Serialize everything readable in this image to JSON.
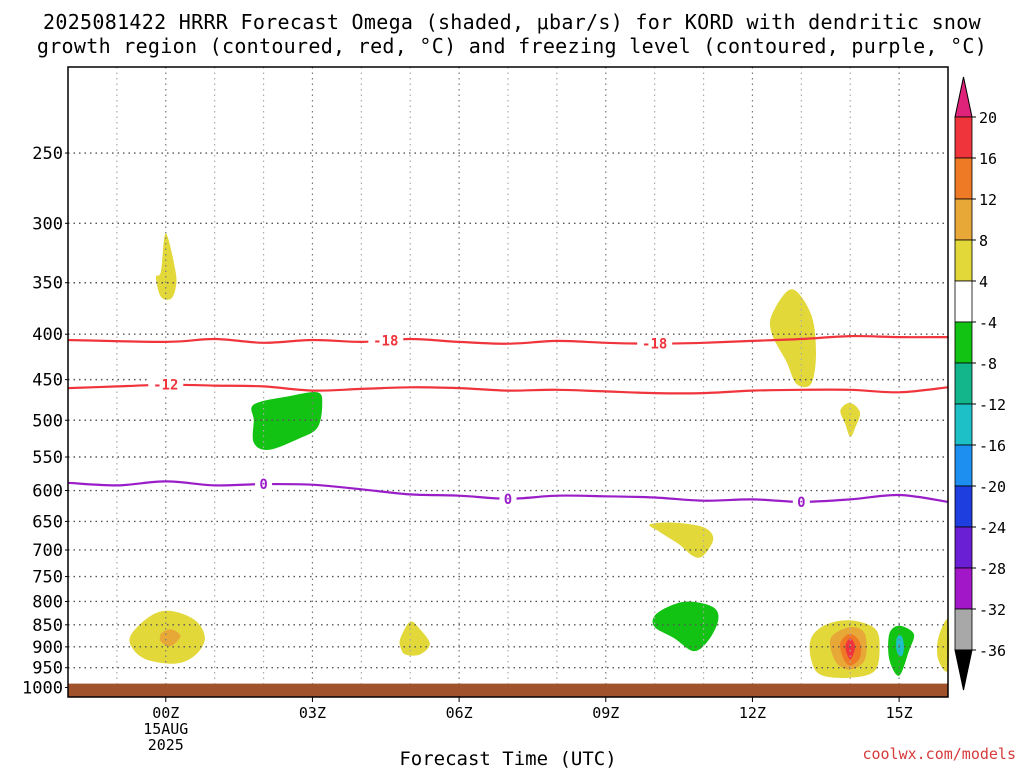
{
  "title": {
    "line1": "2025081422 HRRR Forecast Omega (shaded, μbar/s) for KORD with dendritic snow",
    "line2": "growth region (contoured, red, °C) and freezing level (contoured, purple, °C)"
  },
  "credit": "coolwx.com/models",
  "chart_data": {
    "type": "contour-cross-section",
    "xlabel": "Forecast Time (UTC)",
    "ylabel": "",
    "x_ticks": [
      {
        "value": 0,
        "label": "00Z",
        "sub": [
          "15AUG",
          "2025"
        ]
      },
      {
        "value": 3,
        "label": "03Z",
        "sub": []
      },
      {
        "value": 6,
        "label": "06Z",
        "sub": []
      },
      {
        "value": 9,
        "label": "09Z",
        "sub": []
      },
      {
        "value": 12,
        "label": "12Z",
        "sub": []
      },
      {
        "value": 15,
        "label": "15Z",
        "sub": []
      }
    ],
    "xlim": [
      -2,
      16
    ],
    "y_ticks": [
      250,
      300,
      350,
      400,
      450,
      500,
      550,
      600,
      650,
      700,
      750,
      800,
      850,
      900,
      950,
      1000
    ],
    "ylim_hPa": [
      200,
      1025
    ],
    "y_scale": "log",
    "grid": true,
    "colorbar": {
      "labels": [
        "20",
        "16",
        "12",
        "8",
        "4",
        "-4",
        "-8",
        "-12",
        "-16",
        "-20",
        "-24",
        "-28",
        "-32",
        "-36"
      ],
      "colors": [
        "#e0235b",
        "#f0343c",
        "#ee7a26",
        "#e8a838",
        "#e2d83a",
        "#ffffff",
        "#13c313",
        "#13b58a",
        "#1ec0c8",
        "#1d8ff0",
        "#1e3ee0",
        "#6a1fd4",
        "#a217c8",
        "#a8a8a8"
      ],
      "top_arrow_color": "#e0237a",
      "bottom_arrow_color": "#000000"
    },
    "contours": [
      {
        "name": "-18",
        "color": "#f0343c",
        "label_at": [
          4.5,
          10
        ],
        "points": [
          [
            -2,
            406
          ],
          [
            0,
            408
          ],
          [
            1,
            405
          ],
          [
            2,
            409
          ],
          [
            3,
            406
          ],
          [
            4,
            408
          ],
          [
            5,
            405
          ],
          [
            6,
            408
          ],
          [
            7,
            410
          ],
          [
            8,
            407
          ],
          [
            9,
            409
          ],
          [
            10,
            410
          ],
          [
            11,
            409
          ],
          [
            12,
            407
          ],
          [
            13,
            405
          ],
          [
            14,
            402
          ],
          [
            15,
            403
          ],
          [
            16,
            403
          ]
        ]
      },
      {
        "name": "-12",
        "color": "#f0343c",
        "label_at": [
          0
        ],
        "points": [
          [
            -2,
            460
          ],
          [
            -1,
            458
          ],
          [
            0,
            456
          ],
          [
            1,
            457
          ],
          [
            2,
            458
          ],
          [
            3,
            463
          ],
          [
            4,
            461
          ],
          [
            5,
            459
          ],
          [
            6,
            460
          ],
          [
            7,
            463
          ],
          [
            8,
            462
          ],
          [
            9,
            464
          ],
          [
            10,
            466
          ],
          [
            11,
            466
          ],
          [
            12,
            463
          ],
          [
            13,
            462
          ],
          [
            14,
            462
          ],
          [
            15,
            465
          ],
          [
            16,
            459
          ]
        ]
      },
      {
        "name": "0",
        "color": "#9a1ec8",
        "label_at": [
          2,
          7,
          13
        ],
        "points": [
          [
            -2,
            588
          ],
          [
            -1,
            592
          ],
          [
            0,
            586
          ],
          [
            1,
            592
          ],
          [
            2,
            590
          ],
          [
            3,
            591
          ],
          [
            4,
            598
          ],
          [
            5,
            606
          ],
          [
            6,
            608
          ],
          [
            7,
            613
          ],
          [
            8,
            608
          ],
          [
            9,
            609
          ],
          [
            10,
            611
          ],
          [
            11,
            616
          ],
          [
            12,
            614
          ],
          [
            13,
            618
          ],
          [
            14,
            614
          ],
          [
            15,
            607
          ],
          [
            16,
            618
          ]
        ]
      }
    ],
    "omega_patches": [
      {
        "level": 4,
        "color": "#e2d83a",
        "points": [
          [
            -0.1,
            340
          ],
          [
            0,
            308
          ],
          [
            0.2,
            340
          ],
          [
            0.2,
            355
          ],
          [
            0.1,
            365
          ],
          [
            -0.1,
            363
          ],
          [
            -0.2,
            345
          ]
        ]
      },
      {
        "level": -8,
        "color": "#13c313",
        "points": [
          [
            1.8,
            480
          ],
          [
            2.5,
            470
          ],
          [
            3.1,
            465
          ],
          [
            3.2,
            480
          ],
          [
            3.1,
            510
          ],
          [
            2.7,
            525
          ],
          [
            2.1,
            540
          ],
          [
            1.8,
            530
          ],
          [
            1.8,
            500
          ]
        ]
      },
      {
        "level": 4,
        "color": "#e2d83a",
        "points": [
          [
            12.4,
            380
          ],
          [
            12.8,
            356
          ],
          [
            13.2,
            380
          ],
          [
            13.3,
            420
          ],
          [
            13.2,
            455
          ],
          [
            12.9,
            455
          ],
          [
            12.7,
            430
          ],
          [
            12.4,
            400
          ]
        ]
      },
      {
        "level": 4,
        "color": "#e2d83a",
        "points": [
          [
            13.8,
            487
          ],
          [
            14.0,
            478
          ],
          [
            14.2,
            490
          ],
          [
            14.1,
            510
          ],
          [
            14.0,
            522
          ],
          [
            13.9,
            505
          ]
        ]
      },
      {
        "level": 4,
        "color": "#e2d83a",
        "points": [
          [
            9.9,
            655
          ],
          [
            10.4,
            652
          ],
          [
            11.0,
            660
          ],
          [
            11.2,
            680
          ],
          [
            11.0,
            710
          ],
          [
            10.8,
            712
          ],
          [
            10.5,
            690
          ],
          [
            10.1,
            668
          ]
        ]
      },
      {
        "level": -8,
        "color": "#13c313",
        "points": [
          [
            10.0,
            830
          ],
          [
            10.3,
            810
          ],
          [
            10.7,
            800
          ],
          [
            11.2,
            812
          ],
          [
            11.3,
            840
          ],
          [
            11.1,
            885
          ],
          [
            10.8,
            910
          ],
          [
            10.4,
            880
          ],
          [
            10.0,
            855
          ]
        ]
      },
      {
        "level": 4,
        "color": "#e2d83a",
        "points": [
          [
            -0.7,
            870
          ],
          [
            -0.3,
            830
          ],
          [
            0.1,
            820
          ],
          [
            0.6,
            840
          ],
          [
            0.8,
            880
          ],
          [
            0.6,
            920
          ],
          [
            0.2,
            940
          ],
          [
            -0.4,
            930
          ],
          [
            -0.7,
            900
          ]
        ]
      },
      {
        "level": 8,
        "color": "#e8a838",
        "points": [
          [
            -0.1,
            870
          ],
          [
            0.1,
            860
          ],
          [
            0.3,
            875
          ],
          [
            0.1,
            898
          ],
          [
            -0.1,
            888
          ]
        ]
      },
      {
        "level": 4,
        "color": "#e2d83a",
        "points": [
          [
            4.8,
            880
          ],
          [
            5.0,
            843
          ],
          [
            5.2,
            860
          ],
          [
            5.4,
            893
          ],
          [
            5.2,
            918
          ],
          [
            4.9,
            918
          ],
          [
            4.8,
            900
          ]
        ]
      },
      {
        "level": 4,
        "color": "#e2d83a",
        "points": [
          [
            13.2,
            880
          ],
          [
            13.5,
            850
          ],
          [
            14.0,
            840
          ],
          [
            14.5,
            858
          ],
          [
            14.6,
            900
          ],
          [
            14.5,
            958
          ],
          [
            14.0,
            975
          ],
          [
            13.4,
            968
          ],
          [
            13.2,
            930
          ]
        ]
      },
      {
        "level": 8,
        "color": "#e8a838",
        "points": [
          [
            13.6,
            880
          ],
          [
            14.0,
            855
          ],
          [
            14.3,
            870
          ],
          [
            14.3,
            930
          ],
          [
            14.0,
            955
          ],
          [
            13.7,
            935
          ]
        ]
      },
      {
        "level": 12,
        "color": "#ee7a26",
        "points": [
          [
            13.8,
            890
          ],
          [
            14.0,
            870
          ],
          [
            14.2,
            890
          ],
          [
            14.2,
            925
          ],
          [
            14.0,
            945
          ],
          [
            13.85,
            925
          ]
        ]
      },
      {
        "level": 16,
        "color": "#f0343c",
        "points": [
          [
            13.9,
            900
          ],
          [
            14.0,
            880
          ],
          [
            14.1,
            900
          ],
          [
            14.0,
            930
          ]
        ]
      },
      {
        "level": -8,
        "color": "#13c313",
        "points": [
          [
            14.8,
            870
          ],
          [
            15.0,
            852
          ],
          [
            15.3,
            870
          ],
          [
            15.2,
            910
          ],
          [
            15.0,
            970
          ],
          [
            14.8,
            930
          ]
        ]
      },
      {
        "level": -12,
        "color": "#1ec0c8",
        "points": [
          [
            14.95,
            880
          ],
          [
            15.05,
            875
          ],
          [
            15.1,
            900
          ],
          [
            15.05,
            922
          ],
          [
            14.95,
            910
          ]
        ]
      },
      {
        "level": 4,
        "color": "#e2d83a",
        "points": [
          [
            15.8,
            880
          ],
          [
            16.0,
            840
          ],
          [
            16.0,
            955
          ],
          [
            15.8,
            930
          ]
        ]
      }
    ],
    "surface_color": "#a0522d",
    "surface_hPa": 990
  }
}
